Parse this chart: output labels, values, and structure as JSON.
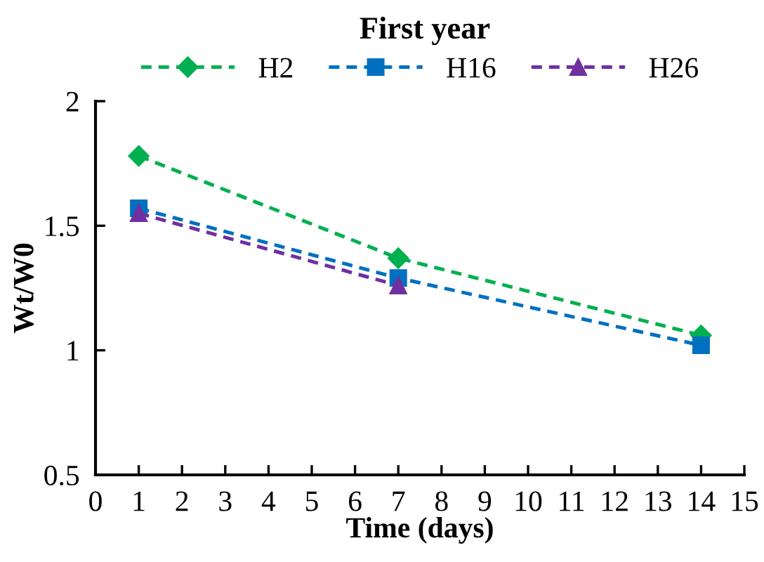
{
  "chart_data": {
    "type": "line",
    "title": "First year",
    "xlabel": "Time (days)",
    "ylabel": "Wt/W0",
    "x": [
      1,
      7,
      14
    ],
    "series": [
      {
        "name": "H2",
        "color": "#00b050",
        "marker": "diamond",
        "values": [
          1.78,
          1.37,
          1.06
        ]
      },
      {
        "name": "H16",
        "color": "#0070c0",
        "marker": "square",
        "values": [
          1.57,
          1.29,
          1.02
        ]
      },
      {
        "name": "H26",
        "color": "#7030a0",
        "marker": "triangle",
        "values": [
          1.55,
          1.26,
          null
        ]
      }
    ],
    "line_style": "dashed",
    "legend": "top",
    "grid": false,
    "xlim": [
      0,
      15
    ],
    "xticks": [
      0,
      1,
      2,
      3,
      4,
      5,
      6,
      7,
      8,
      9,
      10,
      11,
      12,
      13,
      14,
      15
    ],
    "ylim": [
      0.5,
      2
    ],
    "yticks": [
      0.5,
      1,
      1.5,
      2
    ]
  }
}
